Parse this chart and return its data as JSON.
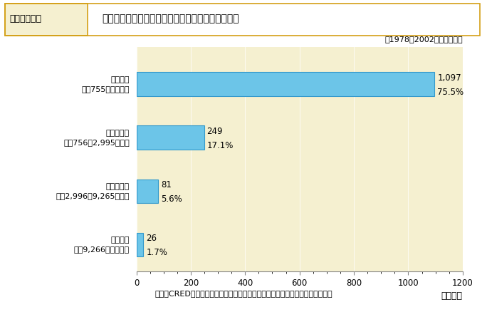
{
  "title_box_label": "図４－１－３",
  "title_text": "自然災害による死者数（国の一人当り平均収入別）",
  "annotation": "［1978－2002　世界合計］",
  "categories": [
    "低収入国\n（年755ドル以下）",
    "中低収入国\n（年756～2,995ドル）",
    "中高収入国\n（年2,996～9,265ドル）",
    "高収入国\n（年9,266ドル以上）"
  ],
  "values": [
    1097,
    249,
    81,
    26
  ],
  "percentages": [
    "75.5%",
    "17.1%",
    "5.6%",
    "1.7%"
  ],
  "bar_color": "#6cc5e8",
  "bar_edge_color": "#3399cc",
  "plot_bg_color": "#f5f0d0",
  "outer_bg_color": "#ffffff",
  "xlabel": "（千人）",
  "xlim": [
    0,
    1200
  ],
  "xticks": [
    0,
    200,
    400,
    600,
    800,
    1000,
    1200
  ],
  "title_bg_color": "#f5f0d0",
  "title_border_color": "#c8a000",
  "header_bg_color": "#f5f0d0",
  "footer_text": "資料：CRED，世界銀行，アジア防災センター資料を基に内閣府において作成。",
  "title_label_bg": "#f5f0d0",
  "title_label_border": "#d4a017"
}
